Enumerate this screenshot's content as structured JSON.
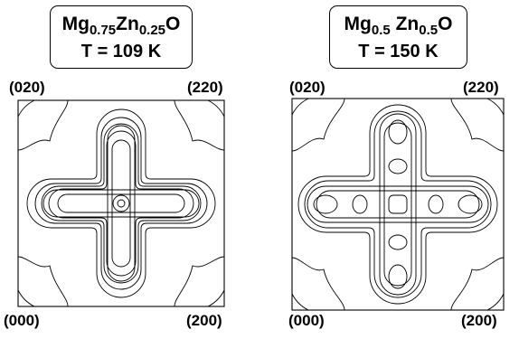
{
  "panels": [
    {
      "formula": {
        "el1": "Mg",
        "sub1": "0.75",
        "el2": "Zn",
        "sub2": "0.25",
        "el3": "O"
      },
      "temperature": "T = 109 K",
      "corners": {
        "top_left": "(020)",
        "top_right": "(220)",
        "bottom_left": "(000)",
        "bottom_right": "(200)"
      }
    },
    {
      "formula": {
        "el1": "Mg",
        "sub1": "0.5",
        "el2": "Zn",
        "sub2": "0.5",
        "el3": "O"
      },
      "temperature": "T = 150 K",
      "corners": {
        "top_left": "(020)",
        "top_right": "(220)",
        "bottom_left": "(000)",
        "bottom_right": "(200)"
      }
    }
  ],
  "line_color": "#000000"
}
